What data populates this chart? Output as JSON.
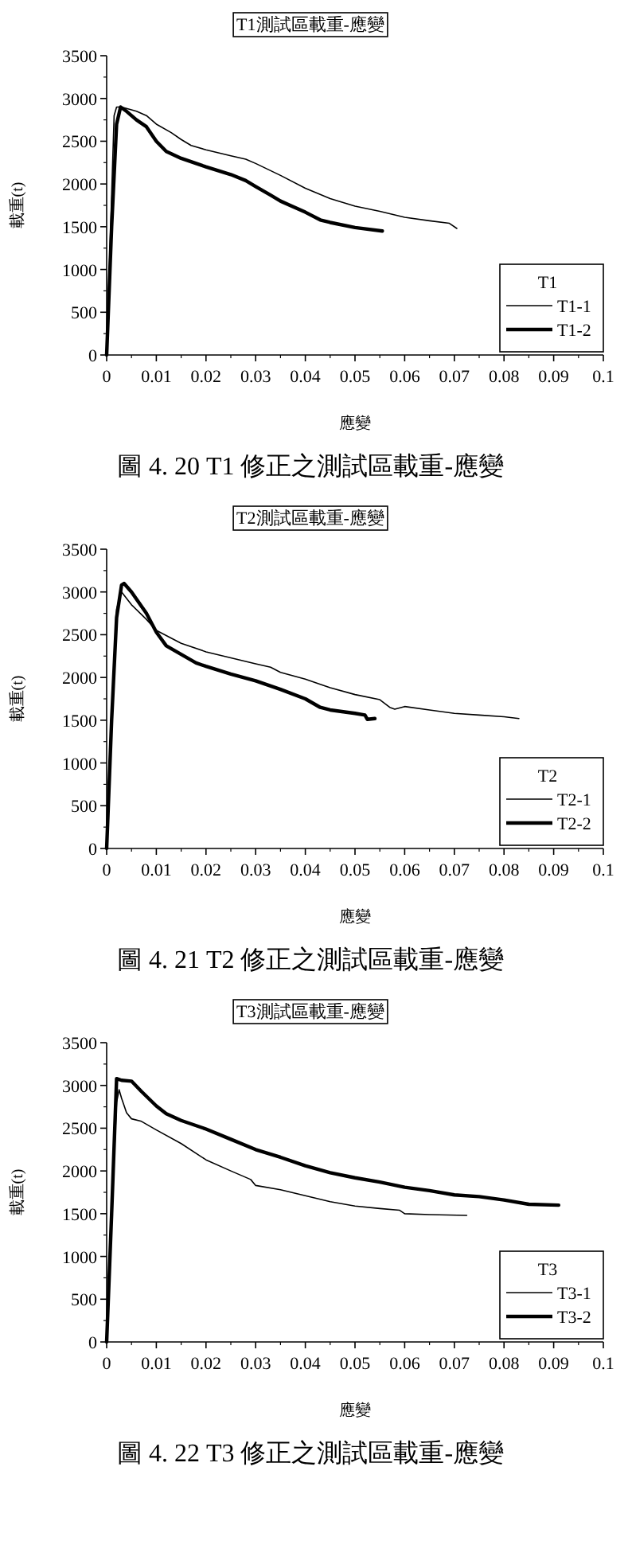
{
  "chart_data": [
    {
      "type": "line",
      "title": "T1測試區載重-應變",
      "xlabel": "應變",
      "ylabel": "載重(t)",
      "legend_title": "T1",
      "legend": "bottom right",
      "grid": false,
      "xlim": [
        0,
        0.1
      ],
      "ylim": [
        0,
        3500
      ],
      "xticks": [
        0,
        0.01,
        0.02,
        0.03,
        0.04,
        0.05,
        0.06,
        0.07,
        0.08,
        0.09,
        0.1
      ],
      "yticks": [
        0,
        500,
        1000,
        1500,
        2000,
        2500,
        3000,
        3500
      ],
      "annotations": [
        "圖 4. 20 T1 修正之測試區載重-應變"
      ],
      "series": [
        {
          "name": "T1-1",
          "color": "#000000",
          "x": [
            0,
            0.0015,
            0.002,
            0.003,
            0.006,
            0.008,
            0.01,
            0.013,
            0.015,
            0.017,
            0.02,
            0.025,
            0.028,
            0.03,
            0.035,
            0.04,
            0.045,
            0.05,
            0.055,
            0.06,
            0.065,
            0.069,
            0.0705
          ],
          "values": [
            0,
            2800,
            2900,
            2900,
            2850,
            2800,
            2700,
            2600,
            2520,
            2450,
            2400,
            2330,
            2290,
            2240,
            2100,
            1950,
            1830,
            1740,
            1680,
            1610,
            1570,
            1540,
            1480
          ]
        },
        {
          "name": "T1-2",
          "color": "#000000",
          "x": [
            0,
            0.001,
            0.002,
            0.0028,
            0.004,
            0.006,
            0.008,
            0.01,
            0.012,
            0.015,
            0.02,
            0.025,
            0.028,
            0.03,
            0.033,
            0.035,
            0.04,
            0.043,
            0.045,
            0.05,
            0.0555
          ],
          "values": [
            0,
            1500,
            2700,
            2900,
            2850,
            2750,
            2670,
            2500,
            2380,
            2300,
            2200,
            2110,
            2040,
            1970,
            1870,
            1800,
            1670,
            1580,
            1550,
            1490,
            1450
          ]
        }
      ]
    },
    {
      "type": "line",
      "title": "T2測試區載重-應變",
      "xlabel": "應變",
      "ylabel": "載重(t)",
      "legend_title": "T2",
      "legend": "bottom right",
      "grid": false,
      "xlim": [
        0,
        0.1
      ],
      "ylim": [
        0,
        3500
      ],
      "xticks": [
        0,
        0.01,
        0.02,
        0.03,
        0.04,
        0.05,
        0.06,
        0.07,
        0.08,
        0.09,
        0.1
      ],
      "yticks": [
        0,
        500,
        1000,
        1500,
        2000,
        2500,
        3000,
        3500
      ],
      "annotations": [
        "圖 4. 21 T2 修正之測試區載重-應變"
      ],
      "series": [
        {
          "name": "T2-1",
          "color": "#000000",
          "x": [
            0,
            0.001,
            0.002,
            0.003,
            0.005,
            0.008,
            0.01,
            0.015,
            0.02,
            0.025,
            0.03,
            0.033,
            0.035,
            0.04,
            0.043,
            0.045,
            0.05,
            0.055,
            0.057,
            0.058,
            0.06,
            0.065,
            0.07,
            0.075,
            0.08,
            0.083
          ],
          "values": [
            0,
            1500,
            2800,
            3000,
            2850,
            2680,
            2550,
            2400,
            2300,
            2230,
            2160,
            2120,
            2060,
            1980,
            1920,
            1880,
            1800,
            1740,
            1650,
            1630,
            1660,
            1620,
            1580,
            1560,
            1540,
            1520
          ]
        },
        {
          "name": "T2-2",
          "color": "#000000",
          "x": [
            0,
            0.001,
            0.002,
            0.003,
            0.0035,
            0.005,
            0.008,
            0.01,
            0.012,
            0.015,
            0.018,
            0.02,
            0.025,
            0.03,
            0.035,
            0.04,
            0.043,
            0.045,
            0.05,
            0.052,
            0.0525,
            0.054
          ],
          "values": [
            0,
            1500,
            2700,
            3080,
            3100,
            3000,
            2750,
            2530,
            2370,
            2270,
            2170,
            2130,
            2040,
            1960,
            1860,
            1750,
            1650,
            1620,
            1580,
            1560,
            1510,
            1520
          ]
        }
      ]
    },
    {
      "type": "line",
      "title": "T3測試區載重-應變",
      "xlabel": "應變",
      "ylabel": "載重(t)",
      "legend_title": "T3",
      "legend": "bottom right",
      "grid": false,
      "xlim": [
        0,
        0.1
      ],
      "ylim": [
        0,
        3500
      ],
      "xticks": [
        0,
        0.01,
        0.02,
        0.03,
        0.04,
        0.05,
        0.06,
        0.07,
        0.08,
        0.09,
        0.1
      ],
      "yticks": [
        0,
        500,
        1000,
        1500,
        2000,
        2500,
        3000,
        3500
      ],
      "annotations": [
        "圖 4. 22 T3 修正之測試區載重-應變"
      ],
      "series": [
        {
          "name": "T3-1",
          "color": "#000000",
          "x": [
            0,
            0.001,
            0.002,
            0.0025,
            0.003,
            0.004,
            0.005,
            0.007,
            0.01,
            0.015,
            0.02,
            0.025,
            0.029,
            0.03,
            0.035,
            0.04,
            0.045,
            0.05,
            0.055,
            0.059,
            0.06,
            0.065,
            0.0725
          ],
          "values": [
            0,
            1500,
            2800,
            2950,
            2850,
            2680,
            2610,
            2580,
            2480,
            2320,
            2130,
            2000,
            1900,
            1830,
            1780,
            1710,
            1640,
            1590,
            1560,
            1540,
            1500,
            1490,
            1480
          ]
        },
        {
          "name": "T3-2",
          "color": "#000000",
          "x": [
            0,
            0.001,
            0.002,
            0.003,
            0.005,
            0.007,
            0.01,
            0.012,
            0.015,
            0.02,
            0.025,
            0.03,
            0.035,
            0.04,
            0.045,
            0.05,
            0.055,
            0.06,
            0.065,
            0.07,
            0.075,
            0.08,
            0.085,
            0.091
          ],
          "values": [
            0,
            1500,
            3080,
            3060,
            3050,
            2930,
            2760,
            2670,
            2590,
            2490,
            2370,
            2250,
            2160,
            2060,
            1980,
            1920,
            1870,
            1810,
            1770,
            1720,
            1700,
            1660,
            1610,
            1600
          ]
        }
      ]
    }
  ]
}
